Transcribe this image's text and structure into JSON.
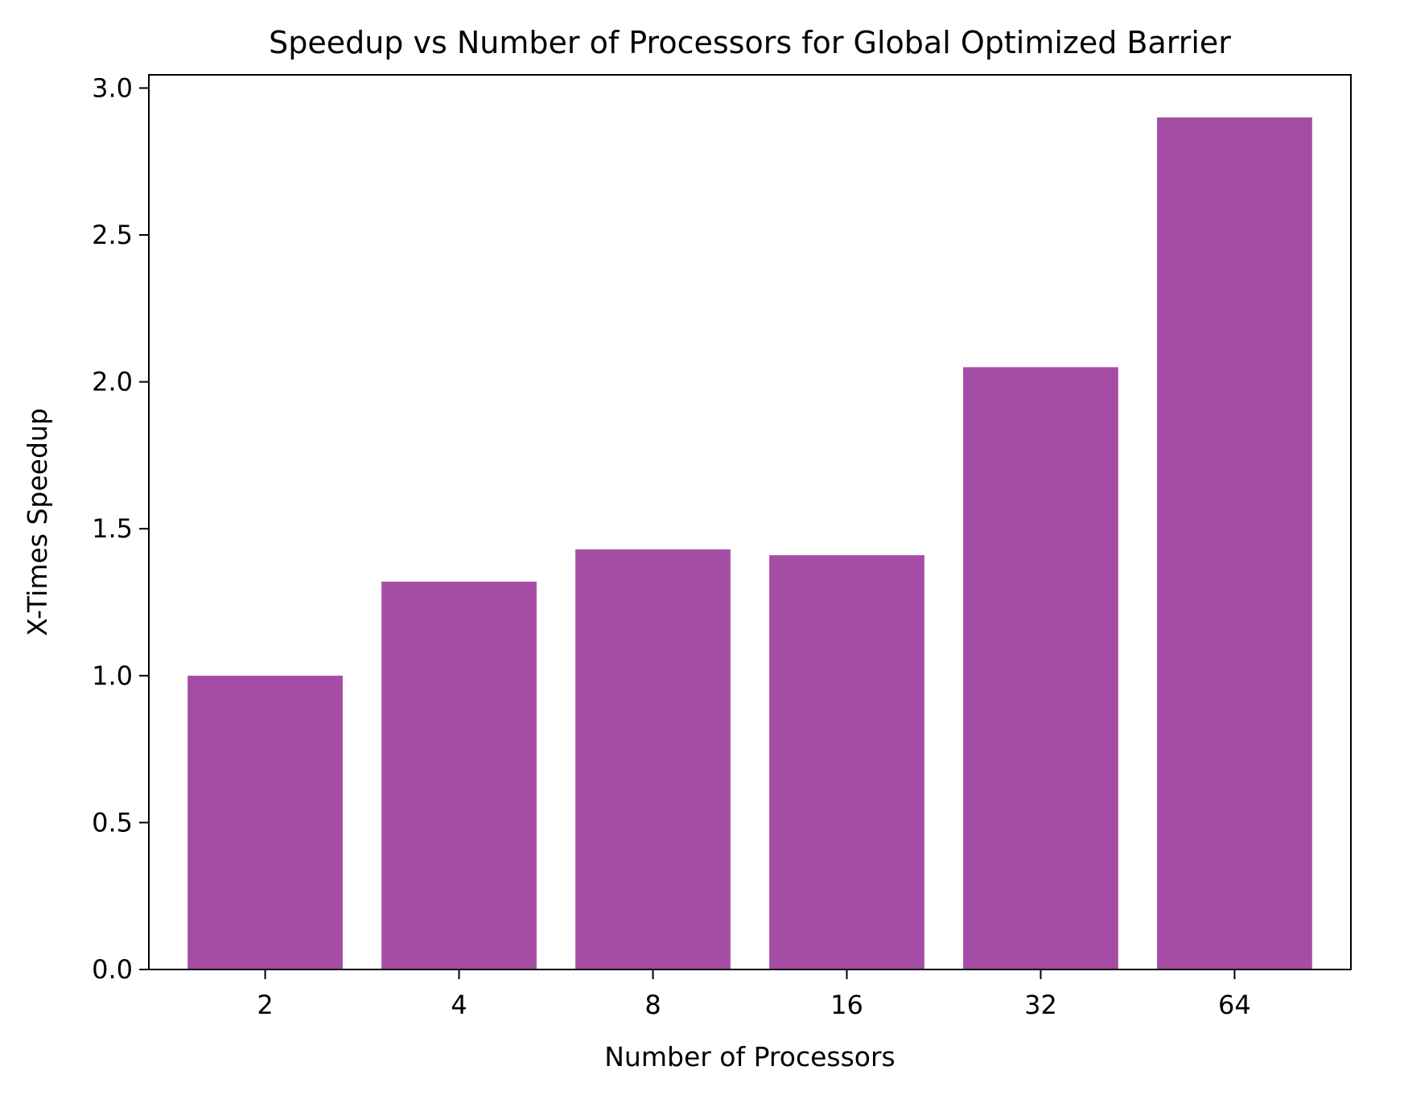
{
  "chart_data": {
    "type": "bar",
    "title": "Speedup vs Number of Processors for Global Optimized Barrier",
    "xlabel": "Number of Processors",
    "ylabel": "X-Times Speedup",
    "categories": [
      "2",
      "4",
      "8",
      "16",
      "32",
      "64"
    ],
    "values": [
      1.0,
      1.32,
      1.43,
      1.41,
      2.05,
      2.9
    ],
    "ylim": [
      0,
      3.045
    ],
    "yticks": [
      0.0,
      0.5,
      1.0,
      1.5,
      2.0,
      2.5,
      3.0
    ],
    "ytick_labels": [
      "0.0",
      "0.5",
      "1.0",
      "1.5",
      "2.0",
      "2.5",
      "3.0"
    ],
    "grid": false,
    "bar_color": "#a54da5"
  }
}
